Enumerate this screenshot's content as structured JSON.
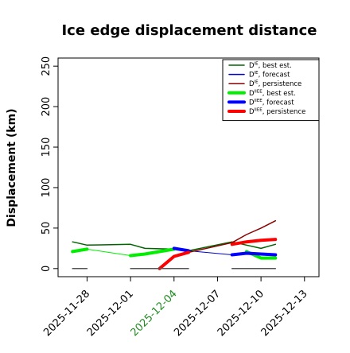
{
  "chart_data": {
    "type": "line",
    "title": "Ice edge displacement distance",
    "ylabel": "Displacement (km)",
    "xlabel": "",
    "ylim": [
      -10,
      260
    ],
    "xlim": [
      "2025-11-26",
      "2025-12-14"
    ],
    "yticks": [
      0,
      50,
      100,
      150,
      200,
      250
    ],
    "xticks": [
      "2025-11-28",
      "2025-12-01",
      "2025-12-04",
      "2025-12-07",
      "2025-12-10",
      "2025-12-13"
    ],
    "highlighted_xtick": "2025-12-04",
    "highlight_color": "#228b22",
    "grid": false,
    "legend_position": "top-right",
    "legend": [
      {
        "prefix": "D",
        "sup": "IE",
        "text": ", best est.",
        "color": "#006400",
        "width": 1.5
      },
      {
        "prefix": "D",
        "sup": "IE",
        "text": ", forecast",
        "color": "#0000cd",
        "width": 1.5
      },
      {
        "prefix": "D",
        "sup": "IE",
        "text": ", persistence",
        "color": "#8b0000",
        "width": 1.5
      },
      {
        "prefix": "D",
        "sup": "IIEE",
        "text": ", best est.",
        "color": "#00ee00",
        "width": 4
      },
      {
        "prefix": "D",
        "sup": "IIEE",
        "text": ", forecast",
        "color": "#0000ff",
        "width": 4
      },
      {
        "prefix": "D",
        "sup": "IIEE",
        "text": ", persistence",
        "color": "#ff0000",
        "width": 4
      }
    ],
    "series": [
      {
        "color": "#006400",
        "width": 1.5,
        "points": [
          [
            "2025-11-27",
            33
          ],
          [
            "2025-11-28",
            29
          ],
          [
            "2025-12-01",
            30
          ],
          [
            "2025-12-02",
            25
          ],
          [
            "2025-12-04",
            24
          ],
          [
            "2025-12-05",
            22
          ],
          [
            "2025-12-08",
            33
          ],
          [
            "2025-12-09",
            29
          ],
          [
            "2025-12-10",
            25
          ],
          [
            "2025-12-11",
            30
          ]
        ]
      },
      {
        "color": "#00ee00",
        "width": 1,
        "points": [
          [
            "2025-11-27",
            21
          ],
          [
            "2025-11-28",
            24
          ],
          [
            "2025-12-01",
            16
          ],
          [
            "2025-12-02",
            18
          ],
          [
            "2025-12-04",
            24
          ],
          [
            "2025-12-05",
            21
          ]
        ]
      },
      {
        "color": "#00ee00",
        "width": 4,
        "points": [
          [
            "2025-11-27",
            21
          ],
          [
            "2025-11-28",
            24
          ]
        ]
      },
      {
        "color": "#00ee00",
        "width": 4,
        "points": [
          [
            "2025-12-01",
            16
          ],
          [
            "2025-12-02",
            18
          ],
          [
            "2025-12-04",
            24
          ]
        ]
      },
      {
        "color": "#00ee00",
        "width": 4,
        "points": [
          [
            "2025-12-09",
            21
          ],
          [
            "2025-12-10",
            13
          ],
          [
            "2025-12-11",
            13
          ]
        ]
      },
      {
        "color": "#0000cd",
        "width": 1,
        "points": [
          [
            "2025-12-04",
            25
          ],
          [
            "2025-12-05",
            22
          ],
          [
            "2025-12-08",
            17
          ],
          [
            "2025-12-09",
            19
          ],
          [
            "2025-12-10",
            18
          ],
          [
            "2025-12-11",
            17
          ]
        ]
      },
      {
        "color": "#0000ff",
        "width": 4,
        "points": [
          [
            "2025-12-04",
            25
          ],
          [
            "2025-12-05",
            22
          ]
        ]
      },
      {
        "color": "#0000ff",
        "width": 4,
        "points": [
          [
            "2025-12-08",
            17
          ],
          [
            "2025-12-09",
            19
          ],
          [
            "2025-12-10",
            18
          ],
          [
            "2025-12-11",
            17
          ]
        ]
      },
      {
        "color": "#8b0000",
        "width": 1.5,
        "points": [
          [
            "2025-12-05",
            20
          ],
          [
            "2025-12-08",
            32
          ],
          [
            "2025-12-09",
            42
          ],
          [
            "2025-12-10",
            50
          ],
          [
            "2025-12-11",
            59
          ]
        ]
      },
      {
        "color": "#ff0000",
        "width": 4,
        "points": [
          [
            "2025-12-03",
            0
          ],
          [
            "2025-12-04",
            15
          ],
          [
            "2025-12-05",
            20
          ]
        ]
      },
      {
        "color": "#ff0000",
        "width": 4,
        "points": [
          [
            "2025-12-08",
            30
          ],
          [
            "2025-12-09",
            33
          ],
          [
            "2025-12-10",
            35
          ],
          [
            "2025-12-11",
            36
          ]
        ]
      },
      {
        "color": "#555555",
        "width": 1.5,
        "points": [
          [
            "2025-11-27",
            0
          ],
          [
            "2025-11-28",
            0
          ]
        ]
      },
      {
        "color": "#555555",
        "width": 1.5,
        "points": [
          [
            "2025-12-01",
            0
          ],
          [
            "2025-12-05",
            0
          ]
        ]
      },
      {
        "color": "#555555",
        "width": 1.5,
        "points": [
          [
            "2025-12-08",
            0
          ],
          [
            "2025-12-11",
            0
          ]
        ]
      }
    ]
  }
}
